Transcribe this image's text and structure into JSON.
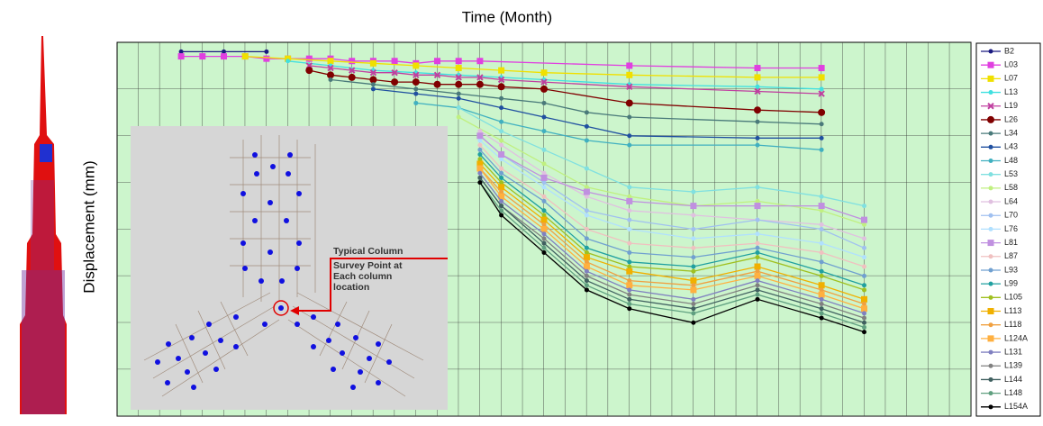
{
  "chart_data": {
    "type": "line",
    "title": "Time (Month)",
    "y_label": "Displacement (mm)",
    "xlim": [
      0,
      40
    ],
    "ylim": [
      -80,
      0
    ],
    "grid": true,
    "legend": "right",
    "annotation": [
      "Typical Column",
      "Survey Point at",
      "Each column",
      "location"
    ],
    "series": [
      {
        "name": "B2",
        "color": "#1a1a80",
        "x": [
          3,
          5,
          7
        ],
        "values": [
          -2,
          -2,
          -2
        ]
      },
      {
        "name": "L03",
        "color": "#e040e0",
        "marker": "square",
        "x": [
          3,
          4,
          5,
          6,
          7,
          8,
          9,
          10,
          11,
          12,
          13,
          14,
          15,
          16,
          17,
          24,
          30,
          33
        ],
        "values": [
          -3,
          -3,
          -3,
          -3,
          -3.5,
          -3.5,
          -3.5,
          -3.5,
          -4,
          -4,
          -4,
          -4.5,
          -4,
          -4,
          -4,
          -5,
          -5.5,
          -5.5
        ]
      },
      {
        "name": "L07",
        "color": "#f0e000",
        "marker": "square",
        "x": [
          6,
          8,
          10,
          12,
          14,
          16,
          18,
          20,
          24,
          30,
          33
        ],
        "values": [
          -3,
          -3.5,
          -4,
          -4.5,
          -5,
          -5.5,
          -6,
          -6.5,
          -7,
          -7.5,
          -7.5
        ]
      },
      {
        "name": "L13",
        "color": "#40e0e0",
        "x": [
          8,
          10,
          12,
          14,
          16,
          18,
          20,
          24,
          30,
          33
        ],
        "values": [
          -4,
          -5,
          -6,
          -6.5,
          -7,
          -7.5,
          -8,
          -9,
          -9.5,
          -10
        ]
      },
      {
        "name": "L19",
        "color": "#c040a0",
        "marker": "x",
        "x": [
          9,
          10,
          11,
          12,
          13,
          14,
          15,
          16,
          17,
          18,
          20,
          24,
          30,
          33
        ],
        "values": [
          -5,
          -5.5,
          -6,
          -6.5,
          -6.5,
          -7,
          -7,
          -7.5,
          -7.5,
          -8,
          -8.5,
          -9.5,
          -10.5,
          -11
        ]
      },
      {
        "name": "L26",
        "color": "#800000",
        "x": [
          9,
          10,
          11,
          12,
          13,
          14,
          15,
          16,
          17,
          18,
          20,
          24,
          30,
          33
        ],
        "values": [
          -6,
          -7,
          -7.5,
          -8,
          -8.5,
          -8.5,
          -9,
          -9,
          -9,
          -9.5,
          -10,
          -13,
          -14.5,
          -15
        ]
      },
      {
        "name": "L34",
        "color": "#4a7a7a",
        "x": [
          10,
          12,
          14,
          16,
          18,
          20,
          22,
          24,
          30,
          33
        ],
        "values": [
          -8,
          -9,
          -10,
          -11,
          -12,
          -13,
          -15,
          -16,
          -17,
          -17.5
        ]
      },
      {
        "name": "L43",
        "color": "#2050a0",
        "x": [
          12,
          14,
          16,
          18,
          20,
          22,
          24,
          30,
          33
        ],
        "values": [
          -10,
          -11,
          -12,
          -14,
          -16,
          -18,
          -20,
          -20.5,
          -20.5
        ]
      },
      {
        "name": "L48",
        "color": "#40b0c0",
        "x": [
          14,
          16,
          18,
          20,
          22,
          24,
          30,
          33
        ],
        "values": [
          -13,
          -14,
          -17,
          -19,
          -21,
          -22,
          -22,
          -23
        ]
      },
      {
        "name": "L53",
        "color": "#80e0e0",
        "x": [
          16,
          18,
          20,
          22,
          24,
          27,
          30,
          33,
          35
        ],
        "values": [
          -14,
          -19,
          -23,
          -27,
          -31,
          -32,
          -31,
          -33,
          -35
        ]
      },
      {
        "name": "L58",
        "color": "#c0f080",
        "x": [
          16,
          18,
          20,
          22,
          24,
          27,
          30,
          33,
          35
        ],
        "values": [
          -16,
          -21,
          -26,
          -31,
          -33,
          -35,
          -34,
          -36,
          -39
        ]
      },
      {
        "name": "L64",
        "color": "#e0c0e0",
        "x": [
          17,
          18,
          20,
          22,
          24,
          27,
          30,
          33,
          35
        ],
        "values": [
          -19,
          -22,
          -28,
          -33,
          -36,
          -37,
          -38,
          -39,
          -42
        ]
      },
      {
        "name": "L70",
        "color": "#a0c0f0",
        "x": [
          17,
          18,
          20,
          22,
          24,
          27,
          30,
          33,
          35
        ],
        "values": [
          -20,
          -24,
          -30,
          -36,
          -38,
          -40,
          -38,
          -40,
          -44
        ]
      },
      {
        "name": "L76",
        "color": "#b0e0ff",
        "x": [
          17,
          18,
          20,
          22,
          24,
          27,
          30,
          33,
          35
        ],
        "values": [
          -21,
          -25,
          -31,
          -37,
          -40,
          -42,
          -41,
          -43,
          -46
        ]
      },
      {
        "name": "L81",
        "color": "#c090e0",
        "marker": "square",
        "x": [
          17,
          18,
          20,
          22,
          24,
          27,
          30,
          33,
          35
        ],
        "values": [
          -20,
          -24,
          -29,
          -32,
          -34,
          -35,
          -35,
          -35,
          -38
        ]
      },
      {
        "name": "L87",
        "color": "#f0c0c0",
        "x": [
          17,
          18,
          20,
          22,
          24,
          27,
          30,
          33,
          35
        ],
        "values": [
          -22,
          -27,
          -33,
          -40,
          -43,
          -44,
          -43,
          -45,
          -48
        ]
      },
      {
        "name": "L93",
        "color": "#70a0d0",
        "x": [
          17,
          18,
          20,
          22,
          24,
          27,
          30,
          33,
          35
        ],
        "values": [
          -23,
          -28,
          -34,
          -42,
          -45,
          -46,
          -44,
          -47,
          -50
        ]
      },
      {
        "name": "L99",
        "color": "#20a0a0",
        "x": [
          17,
          18,
          20,
          22,
          24,
          27,
          30,
          33,
          35
        ],
        "values": [
          -24,
          -29,
          -36,
          -44,
          -47,
          -48,
          -45,
          -49,
          -52
        ]
      },
      {
        "name": "L105",
        "color": "#a0c020",
        "x": [
          17,
          18,
          20,
          22,
          24,
          27,
          30,
          33,
          35
        ],
        "values": [
          -25,
          -30,
          -37,
          -45,
          -48,
          -49,
          -46,
          -50,
          -53
        ]
      },
      {
        "name": "L113",
        "color": "#f0b000",
        "marker": "square",
        "x": [
          17,
          18,
          20,
          22,
          24,
          27,
          30,
          33,
          35
        ],
        "values": [
          -26,
          -31,
          -38,
          -46,
          -49,
          -51,
          -48,
          -52,
          -55
        ]
      },
      {
        "name": "L118",
        "color": "#f0a040",
        "x": [
          17,
          18,
          20,
          22,
          24,
          27,
          30,
          33,
          35
        ],
        "values": [
          -27,
          -32,
          -39,
          -47,
          -51,
          -52,
          -49,
          -53,
          -56
        ]
      },
      {
        "name": "L124A",
        "color": "#ffb040",
        "marker": "square",
        "x": [
          17,
          18,
          20,
          22,
          24,
          27,
          30,
          33,
          35
        ],
        "values": [
          -27,
          -33,
          -40,
          -48,
          -52,
          -53,
          -50,
          -54,
          -57
        ]
      },
      {
        "name": "L131",
        "color": "#8080c0",
        "x": [
          17,
          18,
          20,
          22,
          24,
          27,
          30,
          33,
          35
        ],
        "values": [
          -28,
          -34,
          -41,
          -49,
          -53,
          -55,
          -51,
          -55,
          -58
        ]
      },
      {
        "name": "L139",
        "color": "#808080",
        "x": [
          17,
          18,
          20,
          22,
          24,
          27,
          30,
          33,
          35
        ],
        "values": [
          -29,
          -35,
          -42,
          -50,
          -54,
          -56,
          -52,
          -56,
          -59
        ]
      },
      {
        "name": "L144",
        "color": "#406060",
        "x": [
          17,
          18,
          20,
          22,
          24,
          27,
          30,
          33,
          35
        ],
        "values": [
          -29,
          -35,
          -43,
          -51,
          -55,
          -57,
          -53,
          -57,
          -60
        ]
      },
      {
        "name": "L148",
        "color": "#60a080",
        "x": [
          17,
          18,
          20,
          22,
          24,
          27,
          30,
          33,
          35
        ],
        "values": [
          -30,
          -36,
          -44,
          -52,
          -56,
          -58,
          -54,
          -58,
          -61
        ]
      },
      {
        "name": "L154A",
        "color": "#000000",
        "x": [
          17,
          18,
          20,
          22,
          24,
          27,
          30,
          33,
          35
        ],
        "values": [
          -30,
          -37,
          -45,
          -53,
          -57,
          -60,
          -55,
          -59,
          -62
        ]
      }
    ]
  }
}
